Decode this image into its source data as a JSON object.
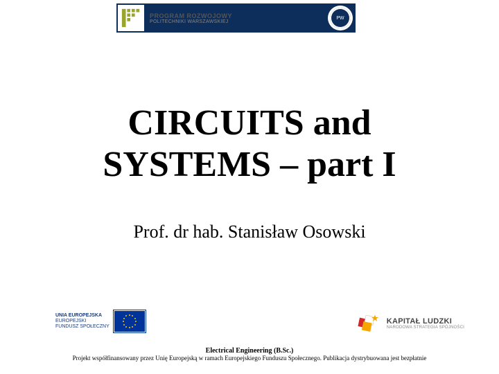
{
  "header": {
    "program_line1": "PROGRAM ROZWOJOWY",
    "program_line2": "POLITECHNIKI WARSZAWSKIEJ",
    "crest_label": "PW"
  },
  "title": {
    "line1": "CIRCUITS and",
    "line2": "SYSTEMS – part I"
  },
  "author": "Prof. dr hab. Stanisław Osowski",
  "eu": {
    "line1": "UNIA EUROPEJSKA",
    "line2": "EUROPEJSKI",
    "line3": "FUNDUSZ SPOŁECZNY",
    "flag_bg": "#003399",
    "star_color": "#ffcc00"
  },
  "kapital": {
    "line1": "KAPITAŁ LUDZKI",
    "line2": "NARODOWA STRATEGIA SPÓJNOŚCI",
    "square_colors": [
      "#d4252a",
      "#f7a600",
      "#ffffff"
    ],
    "star_color": "#f7a600"
  },
  "footer": {
    "line1": "Electrical Engineering (B.Sc.)",
    "line2": "Projekt współfinansowany przez Unię Europejską w ramach Europejskiego Funduszu Społecznego. Publikacja dystrybuowana jest bezpłatnie"
  },
  "colors": {
    "header_bg": "#0d2d5a",
    "text": "#000000",
    "eu_text": "#1a3a7a",
    "kl_text": "#444444"
  }
}
